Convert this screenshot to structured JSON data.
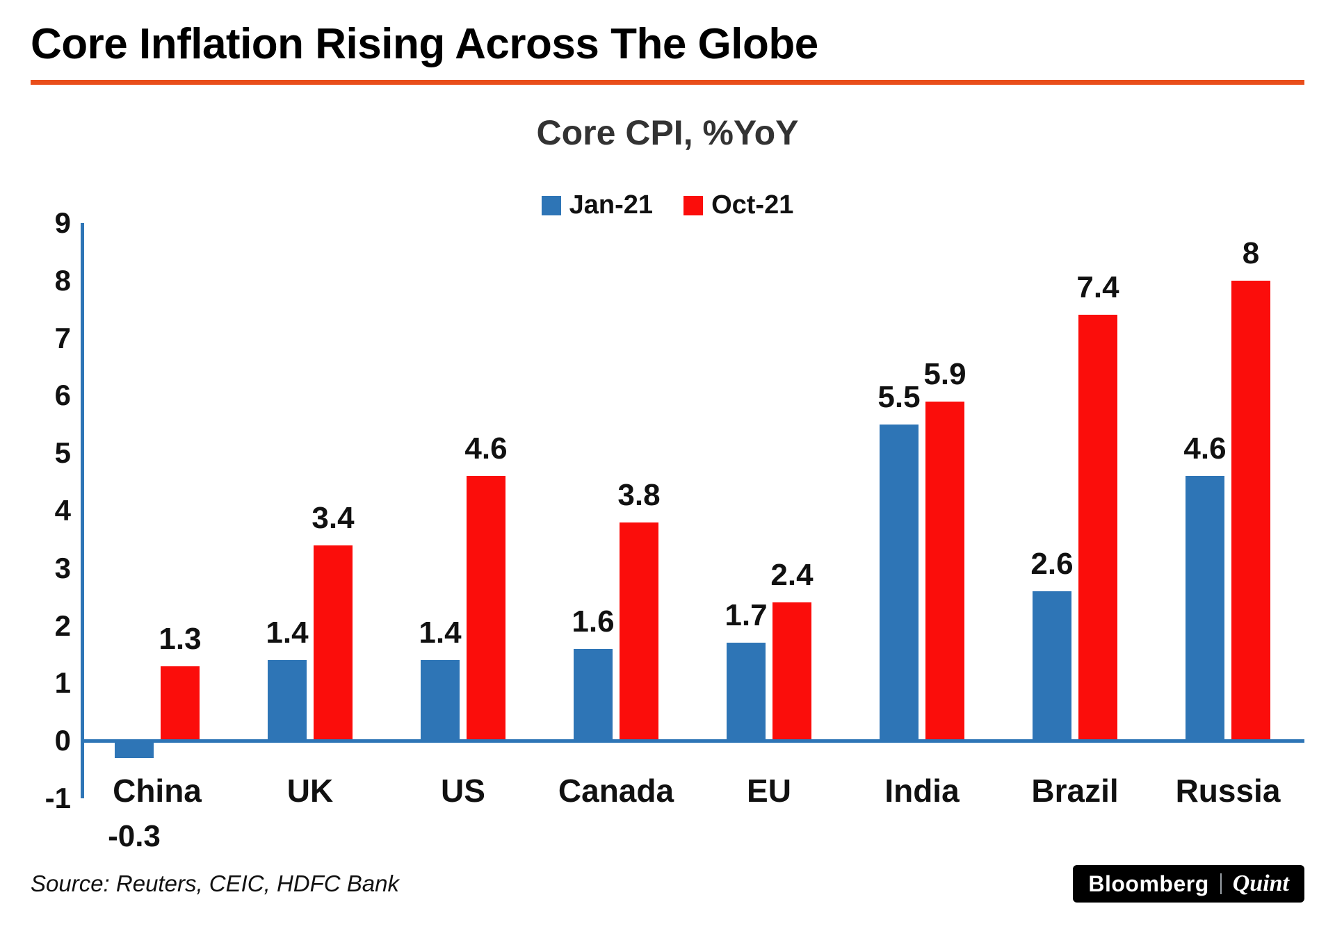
{
  "page": {
    "title": "Core Inflation Rising Across The Globe",
    "source": "Source: Reuters, CEIC, HDFC Bank",
    "logo": {
      "bloomberg": "Bloomberg",
      "quint": "Quint"
    }
  },
  "chart_data": {
    "type": "bar",
    "title": "Core CPI, %YoY",
    "categories": [
      "China",
      "UK",
      "US",
      "Canada",
      "EU",
      "India",
      "Brazil",
      "Russia"
    ],
    "series": [
      {
        "name": "Jan-21",
        "color": "#2e75b6",
        "values": [
          -0.3,
          1.4,
          1.4,
          1.6,
          1.7,
          5.5,
          2.6,
          4.6
        ]
      },
      {
        "name": "Oct-21",
        "color": "#fb0d0b",
        "values": [
          1.3,
          3.4,
          4.6,
          3.8,
          2.4,
          5.9,
          7.4,
          8
        ]
      }
    ],
    "ylim": [
      -1,
      9
    ],
    "yticks": [
      9,
      8,
      7,
      6,
      5,
      4,
      3,
      2,
      1,
      0,
      -1
    ],
    "xlabel": "",
    "ylabel": "",
    "legend_position": "top",
    "grid": false,
    "data_labels": true
  },
  "colors": {
    "accent_rule": "#e94e1b",
    "axis": "#2e75b6",
    "jan": "#2e75b6",
    "oct": "#fb0d0b"
  }
}
